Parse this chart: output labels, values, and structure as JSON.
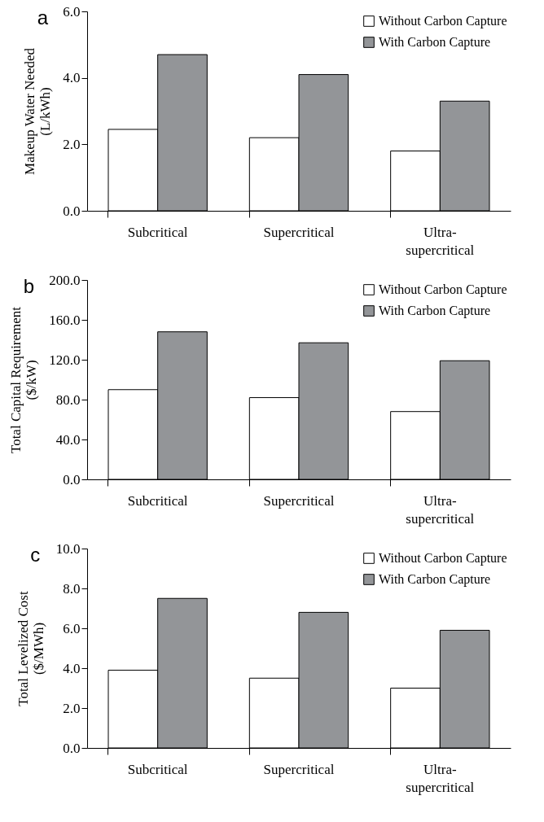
{
  "chart_data": [
    {
      "type": "bar",
      "title": "a",
      "ylabel": "Makeup Water Needed\n(L/kWh)",
      "categories": [
        "Subcritical",
        "Supercritical",
        "Ultra-supercritical"
      ],
      "series": [
        {
          "name": "Without Carbon Capture",
          "color": "#ffffff",
          "values": [
            2.45,
            2.2,
            1.8
          ]
        },
        {
          "name": "With Carbon Capture",
          "color": "#939598",
          "values": [
            4.7,
            4.1,
            3.3
          ]
        }
      ],
      "ylim": [
        0,
        6
      ],
      "yticks": [
        {
          "value": 0,
          "label": "0.0"
        },
        {
          "value": 2,
          "label": "2.0"
        },
        {
          "value": 4,
          "label": "4.0"
        },
        {
          "value": 6,
          "label": "6.0"
        }
      ],
      "legend": "top right"
    },
    {
      "type": "bar",
      "title": "b",
      "ylabel": "Total Capital Requirement\n($/kW)",
      "categories": [
        "Subcritical",
        "Supercritical",
        "Ultra-supercritical"
      ],
      "series": [
        {
          "name": "Without Carbon Capture",
          "color": "#ffffff",
          "values": [
            90,
            82,
            68
          ]
        },
        {
          "name": "With Carbon Capture",
          "color": "#939598",
          "values": [
            148,
            137,
            119
          ]
        }
      ],
      "ylim": [
        0,
        200
      ],
      "yticks": [
        {
          "value": 0,
          "label": "0.0"
        },
        {
          "value": 40,
          "label": "40.0"
        },
        {
          "value": 80,
          "label": "80.0"
        },
        {
          "value": 120,
          "label": "120.0"
        },
        {
          "value": 160,
          "label": "160.0"
        },
        {
          "value": 200,
          "label": "200.0"
        }
      ],
      "legend": "top right"
    },
    {
      "type": "bar",
      "title": "c",
      "ylabel": "Total Levelized Cost\n($/MWh)",
      "categories": [
        "Subcritical",
        "Supercritical",
        "Ultra-supercritical"
      ],
      "series": [
        {
          "name": "Without Carbon Capture",
          "color": "#ffffff",
          "values": [
            3.9,
            3.5,
            3.0
          ]
        },
        {
          "name": "With Carbon Capture",
          "color": "#939598",
          "values": [
            7.5,
            6.8,
            5.9
          ]
        }
      ],
      "ylim": [
        0,
        10
      ],
      "yticks": [
        {
          "value": 0,
          "label": "0.0"
        },
        {
          "value": 2,
          "label": "2.0"
        },
        {
          "value": 4,
          "label": "4.0"
        },
        {
          "value": 6,
          "label": "6.0"
        },
        {
          "value": 8,
          "label": "8.0"
        },
        {
          "value": 10,
          "label": "10.0"
        }
      ],
      "legend": "top right"
    }
  ]
}
